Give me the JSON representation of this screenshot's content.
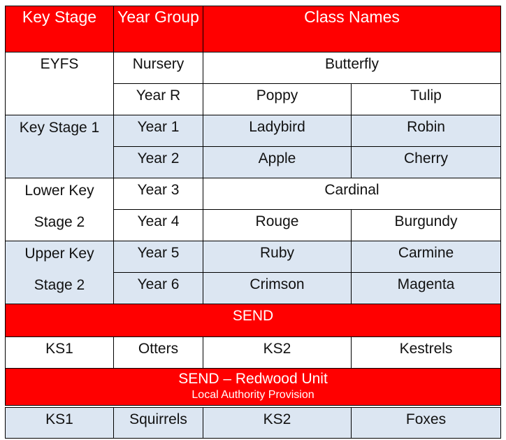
{
  "header": {
    "key_stage": "Key Stage",
    "year_group": "Year Group",
    "class_names": "Class Names"
  },
  "eyfs": {
    "stage": "EYFS",
    "rows": [
      {
        "year": "Nursery",
        "classes": [
          "Butterfly"
        ]
      },
      {
        "year": "Year R",
        "classes": [
          "Poppy",
          "Tulip"
        ]
      }
    ]
  },
  "ks1": {
    "stage": "Key Stage 1",
    "rows": [
      {
        "year": "Year 1",
        "classes": [
          "Ladybird",
          "Robin"
        ]
      },
      {
        "year": "Year 2",
        "classes": [
          "Apple",
          "Cherry"
        ]
      }
    ]
  },
  "lks2": {
    "stage": "Lower Key Stage 2",
    "rows": [
      {
        "year": "Year 3",
        "classes": [
          "Cardinal"
        ]
      },
      {
        "year": "Year 4",
        "classes": [
          "Rouge",
          "Burgundy"
        ]
      }
    ]
  },
  "uks2": {
    "stage": "Upper Key Stage 2",
    "rows": [
      {
        "year": "Year 5",
        "classes": [
          "Ruby",
          "Carmine"
        ]
      },
      {
        "year": "Year 6",
        "classes": [
          "Crimson",
          "Magenta"
        ]
      }
    ]
  },
  "send": {
    "title": "SEND",
    "cells": [
      "KS1",
      "Otters",
      "KS2",
      "Kestrels"
    ]
  },
  "redwood": {
    "title": "SEND – Redwood Unit",
    "subtitle": "Local Authority Provision",
    "cells": [
      "KS1",
      "Squirrels",
      "KS2",
      "Foxes"
    ]
  },
  "colors": {
    "header_red": "#ff0000",
    "band_blue": "#dce6f2"
  }
}
